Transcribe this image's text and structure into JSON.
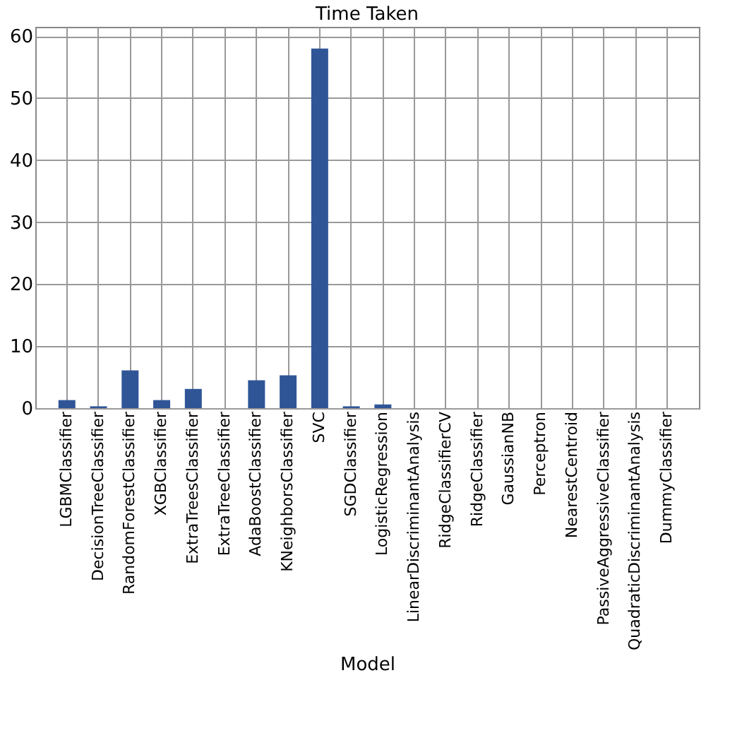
{
  "chart_data": {
    "type": "bar",
    "title": "Time Taken",
    "xlabel": "Model",
    "categories": [
      "LGBMClassifier",
      "DecisionTreeClassifier",
      "RandomForestClassifier",
      "XGBClassifier",
      "ExtraTreesClassifier",
      "ExtraTreeClassifier",
      "AdaBoostClassifier",
      "KNeighborsClassifier",
      "SVC",
      "SGDClassifier",
      "LogisticRegression",
      "LinearDiscriminantAnalysis",
      "RidgeClassifierCV",
      "RidgeClassifier",
      "GaussianNB",
      "Perceptron",
      "NearestCentroid",
      "PassiveAggressiveClassifier",
      "QuadraticDiscriminantAnalysis",
      "DummyClassifier"
    ],
    "values": [
      1.3,
      0.3,
      6.1,
      1.3,
      3.1,
      0,
      4.5,
      5.3,
      58,
      0.3,
      0.6,
      0,
      0,
      0,
      0,
      0,
      0,
      0,
      0,
      0
    ],
    "color": "#2f5597",
    "ylim": [
      0,
      61.5
    ],
    "yticks": [
      0,
      10,
      20,
      30,
      40,
      50,
      60
    ],
    "grid": true
  }
}
